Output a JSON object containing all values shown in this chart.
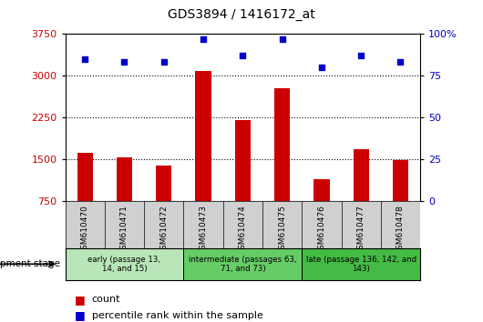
{
  "title": "GDS3894 / 1416172_at",
  "samples": [
    "GSM610470",
    "GSM610471",
    "GSM610472",
    "GSM610473",
    "GSM610474",
    "GSM610475",
    "GSM610476",
    "GSM610477",
    "GSM610478"
  ],
  "counts": [
    1620,
    1530,
    1390,
    3080,
    2200,
    2780,
    1150,
    1680,
    1490
  ],
  "percentiles": [
    85,
    83,
    83,
    97,
    87,
    97,
    80,
    87,
    83
  ],
  "ymin": 750,
  "ymax": 3750,
  "yticks_left": [
    750,
    1500,
    2250,
    3000,
    3750
  ],
  "pct_min": 0,
  "pct_max": 100,
  "yticks_right": [
    0,
    25,
    50,
    75,
    100
  ],
  "bar_color": "#cc0000",
  "scatter_color": "#0000cc",
  "groups": [
    {
      "label": "early (passage 13,\n14, and 15)",
      "start": 0,
      "end": 3,
      "color": "#b8e6b8"
    },
    {
      "label": "intermediate (passages 63,\n71, and 73)",
      "start": 3,
      "end": 6,
      "color": "#66cc66"
    },
    {
      "label": "late (passage 136, 142, and\n143)",
      "start": 6,
      "end": 9,
      "color": "#44bb44"
    }
  ],
  "tick_color_left": "#cc0000",
  "tick_color_right": "#0000cc",
  "label_bg": "#d0d0d0",
  "bar_width": 0.4
}
